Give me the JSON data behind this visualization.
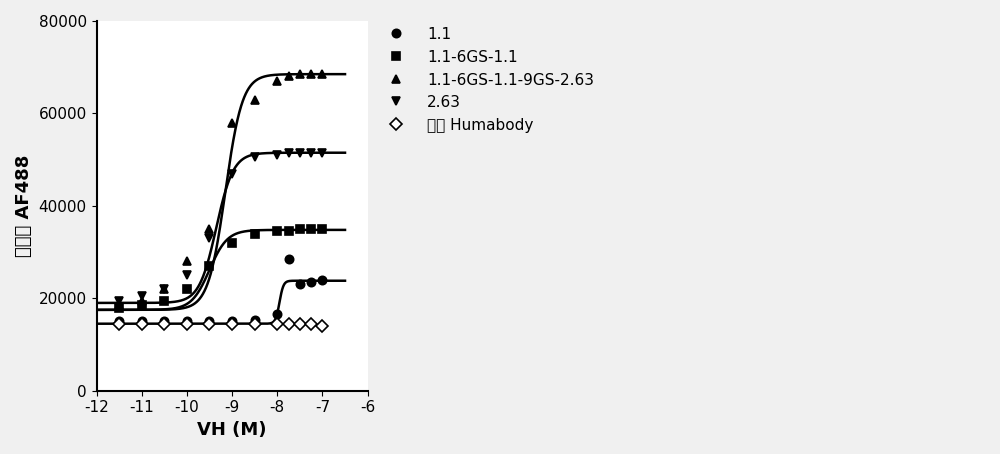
{
  "title": "",
  "xlabel": "VH (M)",
  "ylabel": "中位数 AF488",
  "xlim": [
    -12,
    -6
  ],
  "ylim": [
    0,
    80000
  ],
  "xticks": [
    -12,
    -11,
    -10,
    -9,
    -8,
    -7,
    -6
  ],
  "yticks": [
    0,
    20000,
    40000,
    60000,
    80000
  ],
  "background_color": "#f0f0f0",
  "plot_bg_color": "#ffffff",
  "series": [
    {
      "label": "1.1",
      "marker": "o",
      "color": "#000000",
      "markersize": 6,
      "linewidth": 1.8,
      "filled": true,
      "x_data": [
        -11.5,
        -11,
        -10.5,
        -10,
        -9.5,
        -9,
        -8.5,
        -8,
        -7.75,
        -7.5,
        -7.25,
        -7
      ],
      "y_data": [
        15000,
        15000,
        15000,
        15000,
        15000,
        15000,
        15200,
        16500,
        28500,
        23000,
        23500,
        24000
      ],
      "sigmoid": true,
      "sigmoid_bottom": 14500,
      "sigmoid_top": 23800,
      "sigmoid_ec50": -7.95,
      "sigmoid_hill": 10
    },
    {
      "label": "1.1-6GS-1.1",
      "marker": "s",
      "color": "#000000",
      "markersize": 6,
      "linewidth": 1.8,
      "filled": true,
      "x_data": [
        -11.5,
        -11,
        -10.5,
        -10,
        -9.5,
        -9,
        -8.5,
        -8,
        -7.75,
        -7.5,
        -7.25,
        -7
      ],
      "y_data": [
        18000,
        18500,
        19500,
        22000,
        27000,
        32000,
        34000,
        34500,
        34500,
        35000,
        35000,
        35000
      ],
      "sigmoid": true,
      "sigmoid_bottom": 17500,
      "sigmoid_top": 34800,
      "sigmoid_ec50": -9.5,
      "sigmoid_hill": 2.2
    },
    {
      "label": "1.1-6GS-1.1-9GS-2.63",
      "marker": "^",
      "color": "#000000",
      "markersize": 6,
      "linewidth": 1.8,
      "filled": true,
      "x_data": [
        -11.5,
        -11,
        -10.5,
        -10,
        -9.5,
        -9,
        -8.5,
        -8,
        -7.75,
        -7.5,
        -7.25,
        -7
      ],
      "y_data": [
        18500,
        19500,
        22000,
        28000,
        35000,
        58000,
        63000,
        67000,
        68000,
        68500,
        68500,
        68500
      ],
      "sigmoid": true,
      "sigmoid_bottom": 17500,
      "sigmoid_top": 68500,
      "sigmoid_ec50": -9.15,
      "sigmoid_hill": 2.3
    },
    {
      "label": "2.63",
      "marker": "v",
      "color": "#000000",
      "markersize": 6,
      "linewidth": 1.8,
      "filled": true,
      "x_data": [
        -11.5,
        -11,
        -10.5,
        -10,
        -9.5,
        -9,
        -8.5,
        -8,
        -7.75,
        -7.5,
        -7.25,
        -7
      ],
      "y_data": [
        19500,
        20500,
        22000,
        25000,
        33000,
        47000,
        50500,
        51000,
        51500,
        51500,
        51500,
        51500
      ],
      "sigmoid": true,
      "sigmoid_bottom": 19000,
      "sigmoid_top": 51500,
      "sigmoid_ec50": -9.35,
      "sigmoid_hill": 2.3
    },
    {
      "label": "阴性 Humabody",
      "marker": "D",
      "color": "#000000",
      "markersize": 6,
      "filled": false,
      "linewidth": 1.8,
      "x_data": [
        -11.5,
        -11,
        -10.5,
        -10,
        -9.5,
        -9,
        -8.5,
        -8,
        -7.75,
        -7.5,
        -7.25,
        -7
      ],
      "y_data": [
        14500,
        14500,
        14500,
        14500,
        14500,
        14500,
        14500,
        14500,
        14500,
        14500,
        14500,
        14000
      ],
      "sigmoid": false
    }
  ],
  "figwidth": 10.0,
  "figheight": 4.54,
  "fontsize_label": 13,
  "fontsize_tick": 11,
  "fontsize_legend": 11
}
